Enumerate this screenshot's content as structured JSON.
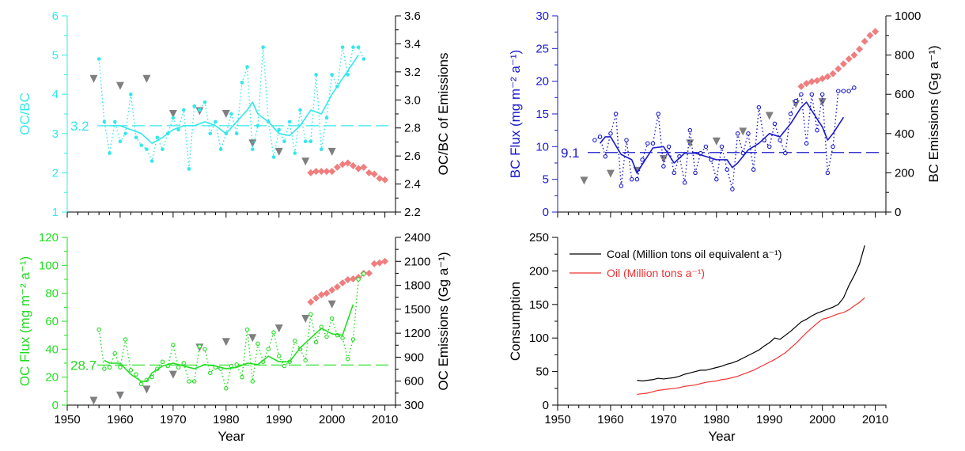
{
  "chart_data": [
    {
      "id": "ocbc",
      "type": "line",
      "xlim": [
        1950,
        2012
      ],
      "xticks": [
        1950,
        1960,
        1970,
        1980,
        1990,
        2000,
        2010
      ],
      "xtick_labels": [
        "",
        "",
        "",
        "",
        "",
        "",
        ""
      ],
      "xlabel": "",
      "left_axis": {
        "label": "OC/BC",
        "color": "#33e8ec",
        "ylim": [
          1,
          6
        ],
        "ticks": [
          1,
          2,
          3,
          4,
          5,
          6
        ],
        "tick_labels": [
          "1",
          "2",
          "3",
          "4",
          "5",
          "6"
        ]
      },
      "right_axis": {
        "label": "OC/BC of Emissions",
        "color": "#000000",
        "ylim": [
          2.2,
          3.6
        ],
        "ticks": [
          2.2,
          2.4,
          2.6,
          2.8,
          3.0,
          3.2,
          3.4,
          3.6
        ],
        "tick_labels": [
          "2.2",
          "2.4",
          "2.6",
          "2.8",
          "3.0",
          "3.2",
          "3.4",
          "3.6"
        ]
      },
      "mean_line": {
        "value": 3.2,
        "label": "3.2",
        "color": "#33e8ec"
      },
      "color": "#33e8ec",
      "annual": {
        "x": [
          1956,
          1957,
          1958,
          1959,
          1960,
          1961,
          1962,
          1963,
          1964,
          1965,
          1966,
          1967,
          1968,
          1969,
          1970,
          1971,
          1972,
          1973,
          1974,
          1975,
          1976,
          1977,
          1978,
          1979,
          1980,
          1981,
          1982,
          1983,
          1984,
          1985,
          1986,
          1987,
          1988,
          1989,
          1990,
          1991,
          1992,
          1993,
          1994,
          1995,
          1996,
          1997,
          1998,
          1999,
          2000,
          2001,
          2002,
          2003,
          2004,
          2005,
          2006
        ],
        "y": [
          4.9,
          3.3,
          2.5,
          3.3,
          2.8,
          3.0,
          4.0,
          2.9,
          2.7,
          2.6,
          2.3,
          2.9,
          2.6,
          3.0,
          3.4,
          3.1,
          3.6,
          2.1,
          3.7,
          3.6,
          3.8,
          3.0,
          3.3,
          2.6,
          3.0,
          3.5,
          3.0,
          4.3,
          4.7,
          2.6,
          3.2,
          5.2,
          3.3,
          2.4,
          3.1,
          2.8,
          3.3,
          2.5,
          3.6,
          2.8,
          2.8,
          4.5,
          2.6,
          3.4,
          4.5,
          4.2,
          5.2,
          4.5,
          5.2,
          5.2,
          4.9
        ]
      },
      "smoothed": {
        "x": [
          1958,
          1960,
          1962,
          1964,
          1966,
          1968,
          1970,
          1972,
          1974,
          1976,
          1978,
          1980,
          1982,
          1984,
          1985,
          1986,
          1988,
          1990,
          1992,
          1994,
          1996,
          1998,
          2000,
          2002,
          2004,
          2005
        ],
        "y": [
          3.2,
          3.2,
          3.1,
          3.0,
          2.75,
          2.9,
          3.1,
          3.2,
          3.2,
          3.3,
          3.2,
          3.0,
          3.3,
          3.6,
          3.8,
          3.5,
          3.3,
          3.0,
          2.95,
          3.2,
          3.6,
          3.5,
          4.0,
          4.4,
          4.8,
          5.0
        ]
      },
      "triangles": {
        "x": [
          1955,
          1960,
          1965,
          1970,
          1975,
          1980,
          1985,
          1990,
          1995,
          2000
        ],
        "y_right": [
          3.15,
          3.1,
          3.15,
          2.9,
          2.92,
          2.9,
          2.69,
          2.63,
          2.56,
          2.63
        ]
      },
      "emissions": {
        "x": [
          1996,
          1997,
          1998,
          1999,
          2000,
          2001,
          2002,
          2003,
          2004,
          2005,
          2006,
          2007,
          2008,
          2009,
          2010
        ],
        "y_right": [
          2.48,
          2.49,
          2.49,
          2.49,
          2.49,
          2.52,
          2.54,
          2.55,
          2.53,
          2.51,
          2.52,
          2.48,
          2.47,
          2.44,
          2.43
        ]
      }
    },
    {
      "id": "bc",
      "type": "line",
      "xlim": [
        1950,
        2012
      ],
      "xticks": [
        1950,
        1960,
        1970,
        1980,
        1990,
        2000,
        2010
      ],
      "xtick_labels": [
        "",
        "",
        "",
        "",
        "",
        "",
        ""
      ],
      "xlabel": "",
      "left_axis": {
        "label": "BC Flux (mg m⁻² a⁻¹)",
        "color": "#1a1acc",
        "ylim": [
          0,
          30
        ],
        "ticks": [
          0,
          5,
          10,
          15,
          20,
          25,
          30
        ],
        "tick_labels": [
          "0",
          "5",
          "10",
          "15",
          "20",
          "25",
          "30"
        ]
      },
      "right_axis": {
        "label": "BC Emissions (Gg a⁻¹)",
        "color": "#000000",
        "ylim": [
          0,
          1000
        ],
        "ticks": [
          0,
          200,
          400,
          600,
          800,
          1000
        ],
        "tick_labels": [
          "0",
          "200",
          "400",
          "600",
          "800",
          "1000"
        ]
      },
      "mean_line": {
        "value": 9.1,
        "label": "9.1",
        "color": "#1a1acc"
      },
      "color": "#1a1acc",
      "annual": {
        "x": [
          1957,
          1958,
          1959,
          1960,
          1961,
          1962,
          1963,
          1964,
          1965,
          1966,
          1967,
          1968,
          1969,
          1970,
          1971,
          1972,
          1973,
          1974,
          1975,
          1976,
          1977,
          1978,
          1979,
          1980,
          1981,
          1982,
          1983,
          1984,
          1985,
          1986,
          1987,
          1988,
          1989,
          1990,
          1991,
          1992,
          1993,
          1994,
          1995,
          1996,
          1997,
          1998,
          1999,
          2000,
          2001,
          2002,
          2003,
          2004,
          2005,
          2006
        ],
        "y": [
          11,
          11.5,
          8.5,
          12,
          15,
          4,
          11,
          5,
          5,
          8,
          10.5,
          10.5,
          15,
          7,
          10,
          6,
          8.5,
          4.5,
          12.5,
          6,
          9,
          10,
          8,
          5,
          10,
          6.5,
          3.5,
          12,
          9,
          12,
          6.5,
          16,
          11,
          10,
          13.5,
          11,
          9,
          15,
          17,
          18,
          10.5,
          18,
          12.5,
          18,
          6,
          10,
          18.5,
          18.5,
          18.5,
          19
        ]
      },
      "smoothed": {
        "x": [
          1958,
          1959,
          1960,
          1962,
          1964,
          1965,
          1966,
          1968,
          1970,
          1972,
          1974,
          1976,
          1978,
          1980,
          1982,
          1983,
          1984,
          1986,
          1988,
          1990,
          1992,
          1994,
          1996,
          1997,
          1998,
          2000,
          2001,
          2002,
          2004
        ],
        "y": [
          10.5,
          11.5,
          11.5,
          8.8,
          8.0,
          6.0,
          7.3,
          9.8,
          10.0,
          7.5,
          9.0,
          9.0,
          8.5,
          8.0,
          8.0,
          6.8,
          7.5,
          9.5,
          10.5,
          12.0,
          11.5,
          13.5,
          16.0,
          16.8,
          15.5,
          13.0,
          11.0,
          12.0,
          14.5
        ]
      },
      "triangles": {
        "x": [
          1955,
          1960,
          1965,
          1970,
          1975,
          1980,
          1985,
          1990,
          1995,
          2000
        ],
        "y_right": [
          160,
          195,
          210,
          270,
          350,
          360,
          410,
          490,
          550,
          560
        ]
      },
      "emissions": {
        "x": [
          1996,
          1997,
          1998,
          1999,
          2000,
          2001,
          2002,
          2003,
          2004,
          2005,
          2006,
          2007,
          2008,
          2009,
          2010
        ],
        "y_right": [
          640,
          655,
          665,
          670,
          680,
          690,
          705,
          730,
          755,
          780,
          800,
          830,
          870,
          900,
          920
        ]
      }
    },
    {
      "id": "oc",
      "type": "line",
      "xlim": [
        1950,
        2012
      ],
      "xticks": [
        1950,
        1960,
        1970,
        1980,
        1990,
        2000,
        2010
      ],
      "xtick_labels": [
        "1950",
        "1960",
        "1970",
        "1980",
        "1990",
        "2000",
        "2010"
      ],
      "xlabel": "Year",
      "left_axis": {
        "label": "OC Flux (mg m⁻² a⁻¹)",
        "color": "#22dd22",
        "ylim": [
          0,
          120
        ],
        "ticks": [
          0,
          20,
          40,
          60,
          80,
          100,
          120
        ],
        "tick_labels": [
          "0",
          "20",
          "40",
          "60",
          "80",
          "100",
          "120"
        ]
      },
      "right_axis": {
        "label": "OC Emissions (Gg a⁻¹)",
        "color": "#000000",
        "ylim": [
          300,
          2400
        ],
        "ticks": [
          300,
          600,
          900,
          1200,
          1500,
          1800,
          2100,
          2400
        ],
        "tick_labels": [
          "300",
          "600",
          "900",
          "1200",
          "1500",
          "1800",
          "2100",
          "2400"
        ]
      },
      "mean_line": {
        "value": 28.7,
        "label": "28.7",
        "color": "#22dd22"
      },
      "color": "#22dd22",
      "annual": {
        "x": [
          1956,
          1957,
          1958,
          1959,
          1960,
          1961,
          1962,
          1963,
          1964,
          1965,
          1966,
          1967,
          1968,
          1969,
          1970,
          1971,
          1972,
          1973,
          1974,
          1975,
          1976,
          1977,
          1978,
          1979,
          1980,
          1981,
          1982,
          1983,
          1984,
          1985,
          1986,
          1987,
          1988,
          1989,
          1990,
          1991,
          1992,
          1993,
          1994,
          1995,
          1996,
          1997,
          1998,
          1999,
          2000,
          2001,
          2002,
          2003,
          2004,
          2005,
          2006
        ],
        "y": [
          54,
          26,
          27,
          37,
          27,
          47,
          25,
          22,
          15,
          18,
          20,
          26,
          31,
          28,
          43,
          27,
          30,
          17,
          17,
          42,
          40,
          23,
          27,
          26,
          12,
          28,
          29,
          20,
          54,
          17,
          44,
          31,
          40,
          52,
          35,
          28,
          31,
          46,
          40,
          32,
          65,
          45,
          56,
          49,
          62,
          50,
          48,
          33,
          47,
          90,
          94
        ]
      },
      "smoothed": {
        "x": [
          1957,
          1958,
          1960,
          1962,
          1964,
          1965,
          1966,
          1968,
          1970,
          1972,
          1974,
          1976,
          1978,
          1980,
          1982,
          1984,
          1986,
          1988,
          1990,
          1992,
          1994,
          1996,
          1998,
          2000,
          2002,
          2004
        ],
        "y": [
          32,
          30,
          30,
          22,
          17,
          17,
          23,
          28,
          30,
          28,
          26,
          29,
          28,
          26,
          27,
          30,
          29,
          35,
          31,
          31,
          41,
          48,
          55,
          51,
          50,
          72
        ]
      },
      "triangles": {
        "x": [
          1955,
          1960,
          1965,
          1970,
          1975,
          1980,
          1985,
          1990,
          1995,
          2000
        ],
        "y_right": [
          355,
          420,
          495,
          680,
          1020,
          1090,
          1140,
          1260,
          1380,
          1560
        ]
      },
      "emissions": {
        "x": [
          1996,
          1997,
          1998,
          1999,
          2000,
          2001,
          2002,
          2003,
          2004,
          2005,
          2006,
          2007,
          2008,
          2009,
          2010
        ],
        "y_right": [
          1590,
          1640,
          1680,
          1700,
          1740,
          1780,
          1830,
          1870,
          1880,
          1900,
          1950,
          1950,
          2070,
          2080,
          2100
        ]
      }
    },
    {
      "id": "consumption",
      "type": "line",
      "xlim": [
        1950,
        2012
      ],
      "xticks": [
        1950,
        1960,
        1970,
        1980,
        1990,
        2000,
        2010
      ],
      "xtick_labels": [
        "1950",
        "1960",
        "1970",
        "1980",
        "1990",
        "2000",
        "2010"
      ],
      "xlabel": "Year",
      "left_axis": {
        "label": "Consumption",
        "color": "#000000",
        "ylim": [
          0,
          250
        ],
        "ticks": [
          0,
          50,
          100,
          150,
          200,
          250
        ],
        "tick_labels": [
          "0",
          "50",
          "100",
          "150",
          "200",
          "250"
        ]
      },
      "legend_position": "top-left",
      "series": [
        {
          "name": "Coal (Million tons oil equivalent a⁻¹)",
          "color": "#000000",
          "x": [
            1965,
            1966,
            1967,
            1968,
            1969,
            1970,
            1971,
            1972,
            1973,
            1974,
            1975,
            1976,
            1977,
            1978,
            1979,
            1980,
            1981,
            1982,
            1983,
            1984,
            1985,
            1986,
            1987,
            1988,
            1989,
            1990,
            1991,
            1992,
            1993,
            1994,
            1995,
            1996,
            1997,
            1998,
            1999,
            2000,
            2001,
            2002,
            2003,
            2004,
            2005,
            2006,
            2007,
            2008
          ],
          "y": [
            37,
            36,
            37,
            38,
            40,
            39,
            40,
            41,
            43,
            46,
            48,
            50,
            52,
            52,
            54,
            56,
            58,
            61,
            63,
            66,
            70,
            74,
            78,
            82,
            88,
            93,
            100,
            98,
            104,
            110,
            117,
            124,
            128,
            133,
            137,
            140,
            143,
            146,
            150,
            160,
            178,
            193,
            210,
            238
          ]
        },
        {
          "name": "Oil (Million tons a⁻¹)",
          "color": "#ee3333",
          "x": [
            1965,
            1966,
            1967,
            1968,
            1969,
            1970,
            1971,
            1972,
            1973,
            1974,
            1975,
            1976,
            1977,
            1978,
            1979,
            1980,
            1981,
            1982,
            1983,
            1984,
            1985,
            1986,
            1987,
            1988,
            1989,
            1990,
            1991,
            1992,
            1993,
            1994,
            1995,
            1996,
            1997,
            1998,
            1999,
            2000,
            2001,
            2002,
            2003,
            2004,
            2005,
            2006,
            2007,
            2008
          ],
          "y": [
            16,
            17,
            18,
            20,
            22,
            23,
            24,
            25,
            26,
            28,
            29,
            30,
            32,
            34,
            35,
            36,
            38,
            39,
            41,
            43,
            46,
            49,
            52,
            56,
            60,
            64,
            68,
            73,
            78,
            85,
            92,
            100,
            108,
            115,
            122,
            128,
            130,
            133,
            136,
            138,
            142,
            148,
            153,
            160
          ]
        }
      ]
    }
  ]
}
